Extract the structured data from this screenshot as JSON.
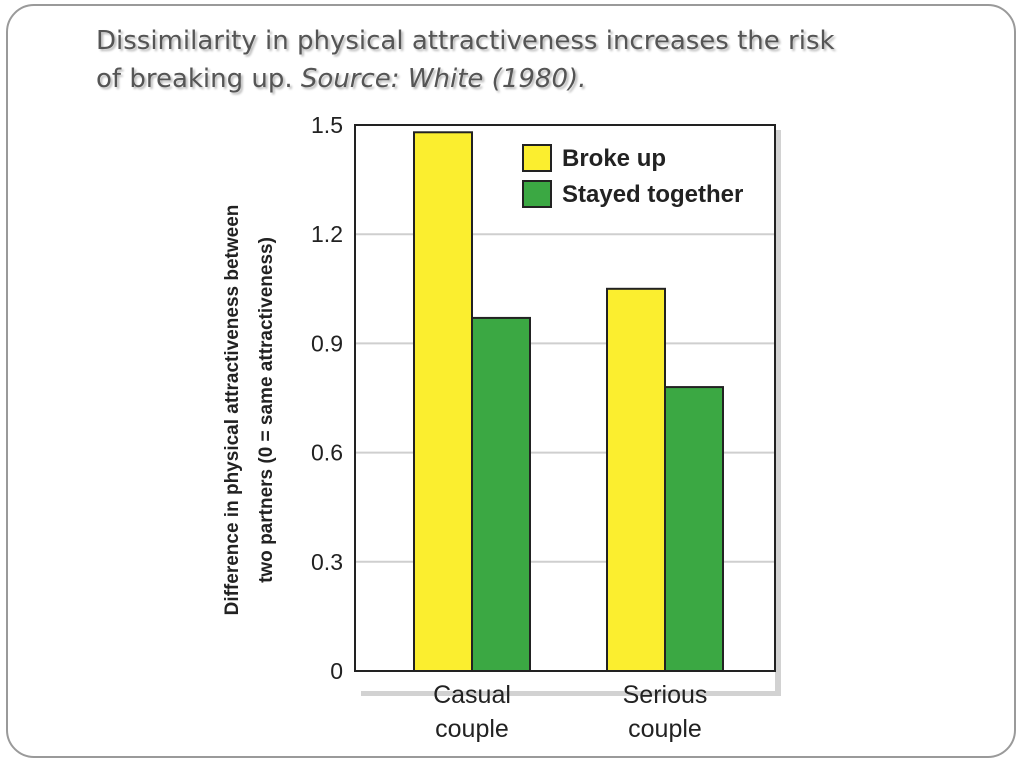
{
  "slide": {
    "title_line1": "Dissimilarity in physical  attractiveness increases the risk",
    "title_line2": "of breaking up.",
    "source": "Source: White (1980)."
  },
  "colors": {
    "broke_up": "#fbee2f",
    "stayed_together": "#3ba843",
    "grid": "#cfcfcf",
    "axis": "#222222"
  },
  "chart_data": {
    "type": "bar",
    "title": "",
    "categories": [
      [
        "Casual",
        "couple"
      ],
      [
        "Serious",
        "couple"
      ]
    ],
    "series": [
      {
        "name": "Broke up",
        "values": [
          1.48,
          1.05
        ]
      },
      {
        "name": "Stayed together",
        "values": [
          0.97,
          0.78
        ]
      }
    ],
    "ylabel_line1": "Difference in physical attractiveness between",
    "ylabel_line2": "two partners (0 = same attractiveness)",
    "xlabel": "",
    "ylim": [
      0,
      1.5
    ],
    "yticks": [
      "0",
      "0.3",
      "0.6",
      "0.9",
      "1.2",
      "1.5"
    ],
    "grid": true,
    "legend_position": "top-right"
  }
}
